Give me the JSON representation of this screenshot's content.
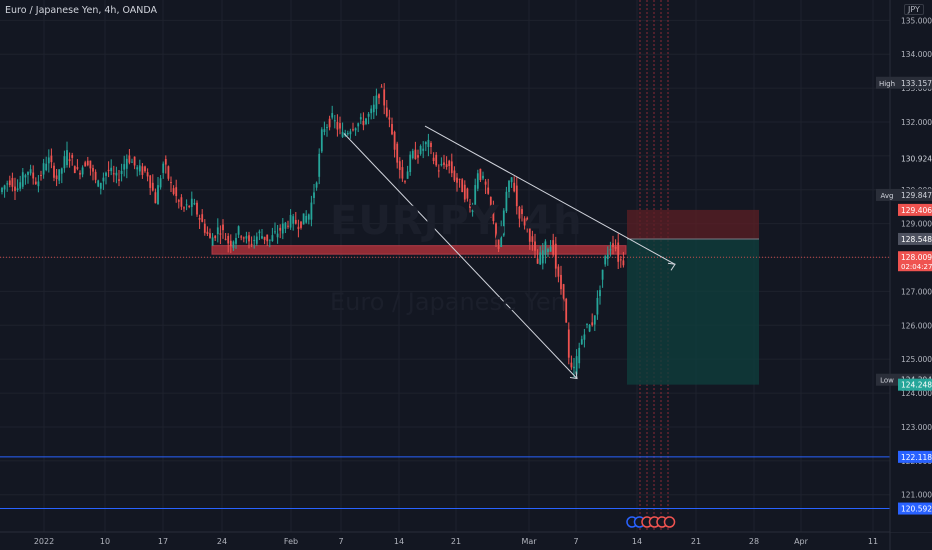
{
  "header": {
    "title": "Euro / Japanese Yen, 4h, OANDA",
    "currency": "JPY"
  },
  "watermark": {
    "symbol": "EURJPY, 4h",
    "name": "Euro / Japanese Yen"
  },
  "colors": {
    "background": "#131722",
    "grid": "#1e222d",
    "up": "#26a69a",
    "down": "#ef5350",
    "resistance_zone": "#b2323a",
    "stop_zone": "#5c1f24",
    "target_zone": "#0f3d3c",
    "horizontal_line": "#2962ff"
  },
  "chart_data": {
    "type": "candlestick",
    "symbol": "EURJPY",
    "timeframe": "4h",
    "x": {
      "tick_labels": [
        "2022",
        "10",
        "17",
        "24",
        "Feb",
        "7",
        "14",
        "21",
        "Mar",
        "7",
        "14",
        "21",
        "28",
        "Apr",
        "11"
      ]
    },
    "y": {
      "ylim": [
        119.9,
        135.6
      ],
      "tick_values": [
        121,
        122,
        123,
        124,
        125,
        126,
        127,
        128,
        129,
        130,
        131,
        132,
        133,
        134,
        135
      ],
      "tick_labels": [
        "121.000",
        "122.000",
        "123.000",
        "124.000",
        "125.000",
        "126.000",
        "127.000",
        "128.000",
        "129.000",
        "130.000",
        "131.000",
        "132.000",
        "133.000",
        "134.000",
        "135.000"
      ]
    },
    "price_levels": [
      {
        "label": "High",
        "value": "133.157",
        "kind": "tag"
      },
      {
        "label": "",
        "value": "130.924",
        "kind": "plain"
      },
      {
        "label": "Avg",
        "value": "129.847",
        "kind": "tag"
      },
      {
        "label": "",
        "value": "129.406",
        "kind": "stop"
      },
      {
        "label": "",
        "value": "128.548",
        "kind": "entry"
      },
      {
        "label": "",
        "value": "128.009",
        "kind": "last",
        "countdown": "02:04:27"
      },
      {
        "label": "Low",
        "value": "124.394",
        "kind": "tag"
      },
      {
        "label": "",
        "value": "124.248",
        "kind": "target"
      },
      {
        "label": "",
        "value": "122.118",
        "kind": "hline"
      },
      {
        "label": "",
        "value": "120.592",
        "kind": "hline"
      }
    ],
    "price_path": [
      [
        1,
        129.9
      ],
      [
        12,
        130.3
      ],
      [
        20,
        130.05
      ],
      [
        30,
        130.6
      ],
      [
        40,
        130.2
      ],
      [
        50,
        130.95
      ],
      [
        60,
        130.3
      ],
      [
        70,
        131.1
      ],
      [
        80,
        130.5
      ],
      [
        90,
        130.9
      ],
      [
        100,
        130.1
      ],
      [
        110,
        130.6
      ],
      [
        120,
        130.3
      ],
      [
        130,
        131.0
      ],
      [
        140,
        130.6
      ],
      [
        150,
        130.5
      ],
      [
        158,
        129.7
      ],
      [
        166,
        130.8
      ],
      [
        175,
        130.0
      ],
      [
        185,
        129.4
      ],
      [
        195,
        129.6
      ],
      [
        205,
        129.0
      ],
      [
        213,
        128.5
      ],
      [
        222,
        128.9
      ],
      [
        232,
        128.4
      ],
      [
        242,
        128.8
      ],
      [
        252,
        128.4
      ],
      [
        262,
        128.7
      ],
      [
        272,
        128.5
      ],
      [
        282,
        128.8
      ],
      [
        292,
        129.1
      ],
      [
        302,
        129.0
      ],
      [
        312,
        129.3
      ],
      [
        320,
        130.5
      ],
      [
        325,
        131.8
      ],
      [
        335,
        132.1
      ],
      [
        345,
        131.6
      ],
      [
        355,
        131.9
      ],
      [
        365,
        132.0
      ],
      [
        375,
        132.3
      ],
      [
        383,
        133.0
      ],
      [
        390,
        132.2
      ],
      [
        398,
        131.2
      ],
      [
        406,
        130.2
      ],
      [
        414,
        131.0
      ],
      [
        422,
        131.1
      ],
      [
        430,
        131.4
      ],
      [
        440,
        130.6
      ],
      [
        450,
        130.8
      ],
      [
        458,
        130.3
      ],
      [
        466,
        130.0
      ],
      [
        474,
        129.3
      ],
      [
        480,
        130.6
      ],
      [
        488,
        130.1
      ],
      [
        496,
        129.0
      ],
      [
        502,
        128.2
      ],
      [
        508,
        129.8
      ],
      [
        515,
        130.4
      ],
      [
        520,
        129.4
      ],
      [
        530,
        128.9
      ],
      [
        540,
        127.8
      ],
      [
        547,
        128.3
      ],
      [
        555,
        128.4
      ],
      [
        560,
        127.4
      ],
      [
        567,
        126.8
      ],
      [
        571,
        125.0
      ],
      [
        575,
        124.5
      ],
      [
        580,
        125.1
      ],
      [
        587,
        125.9
      ],
      [
        594,
        126.0
      ],
      [
        600,
        126.7
      ],
      [
        606,
        127.8
      ],
      [
        612,
        128.3
      ],
      [
        617,
        128.5
      ],
      [
        620,
        128.0
      ],
      [
        624,
        127.9
      ]
    ],
    "drawings": {
      "resistance_zone": {
        "from": 128.1,
        "to": 128.35
      },
      "upper_trendline": [
        [
          425,
          131.88
        ],
        [
          675,
          127.8
        ]
      ],
      "lower_trendline": [
        [
          344,
          131.66
        ],
        [
          577,
          124.43
        ]
      ],
      "position": {
        "stop": 129.406,
        "entry": 128.548,
        "target": 124.248
      }
    },
    "event_markers": 6,
    "grid": true
  }
}
